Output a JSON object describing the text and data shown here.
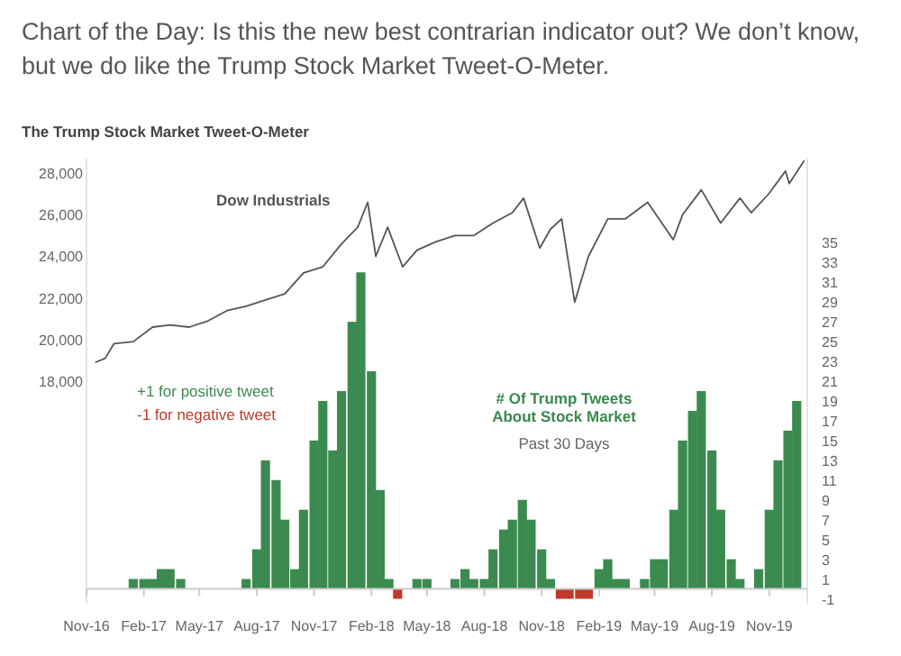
{
  "chart_data": {
    "type": "line",
    "title": "The Trump Stock Market Tweet-O-Meter",
    "subtitle": "Chart of the Day: Is this the new best contrarian indicator out?  We don’t know, but we do like the Trump Stock Market Tweet-O-Meter.",
    "xlim": [
      "2016-11-01",
      "2020-01-01"
    ],
    "xticks": [
      {
        "value": "2016-11-01",
        "label": "Nov-16"
      },
      {
        "value": "2017-02-01",
        "label": "Feb-17"
      },
      {
        "value": "2017-05-01",
        "label": "May-17"
      },
      {
        "value": "2017-08-01",
        "label": "Aug-17"
      },
      {
        "value": "2017-11-01",
        "label": "Nov-17"
      },
      {
        "value": "2018-02-01",
        "label": "Feb-18"
      },
      {
        "value": "2018-05-01",
        "label": "May-18"
      },
      {
        "value": "2018-08-01",
        "label": "Aug-18"
      },
      {
        "value": "2018-11-01",
        "label": "Nov-18"
      },
      {
        "value": "2019-02-01",
        "label": "Feb-19"
      },
      {
        "value": "2019-05-01",
        "label": "May-19"
      },
      {
        "value": "2019-08-01",
        "label": "Aug-19"
      },
      {
        "value": "2019-11-01",
        "label": "Nov-19"
      }
    ],
    "ylim": [
      7300,
      28700
    ],
    "yticks": [
      {
        "value": 18000,
        "label": "18,000"
      },
      {
        "value": 20000,
        "label": "20,000"
      },
      {
        "value": 22000,
        "label": "22,000"
      },
      {
        "value": 24000,
        "label": "24,000"
      },
      {
        "value": 26000,
        "label": "26,000"
      },
      {
        "value": 28000,
        "label": "28,000"
      }
    ],
    "y2lim": [
      -1.5,
      43.5
    ],
    "y2ticks": [
      -1,
      1,
      3,
      5,
      7,
      9,
      11,
      13,
      15,
      17,
      19,
      21,
      23,
      25,
      27,
      29,
      31,
      33,
      35
    ],
    "annotations": [
      "+1 for positive tweet",
      "-1 for negative tweet",
      "Past 30 Days"
    ],
    "series": [
      {
        "name": "Dow Industrials",
        "color": "#555555",
        "x": [
          "2016-11-15",
          "2016-12-01",
          "2016-12-15",
          "2017-01-15",
          "2017-02-15",
          "2017-03-15",
          "2017-04-15",
          "2017-05-15",
          "2017-06-15",
          "2017-07-15",
          "2017-08-15",
          "2017-09-15",
          "2017-10-15",
          "2017-11-15",
          "2017-12-15",
          "2018-01-10",
          "2018-01-26",
          "2018-02-08",
          "2018-02-27",
          "2018-03-23",
          "2018-04-15",
          "2018-05-15",
          "2018-06-15",
          "2018-07-15",
          "2018-08-15",
          "2018-09-15",
          "2018-10-03",
          "2018-10-29",
          "2018-11-15",
          "2018-12-03",
          "2018-12-24",
          "2019-01-15",
          "2019-02-15",
          "2019-03-15",
          "2019-04-20",
          "2019-05-31",
          "2019-06-15",
          "2019-07-15",
          "2019-08-15",
          "2019-09-15",
          "2019-10-03",
          "2019-10-31",
          "2019-11-27",
          "2019-12-03",
          "2019-12-27"
        ],
        "values": [
          18900,
          19100,
          19800,
          19900,
          20600,
          20700,
          20600,
          20900,
          21400,
          21600,
          21900,
          22200,
          23200,
          23500,
          24600,
          25400,
          26600,
          24000,
          25400,
          23500,
          24300,
          24700,
          25000,
          25000,
          25600,
          26100,
          26800,
          24400,
          25300,
          25800,
          21800,
          24000,
          25800,
          25800,
          26600,
          24800,
          26000,
          27200,
          25600,
          26800,
          26100,
          27000,
          28100,
          27500,
          28600
        ]
      },
      {
        "name": "# Of Trump Tweets About Stock Market",
        "type": "bar",
        "axis": "y2",
        "color": "#3b8a4f",
        "x": [
          "2017-01-15",
          "2017-02-01",
          "2017-02-15",
          "2017-03-01",
          "2017-03-15",
          "2017-04-01",
          "2017-07-15",
          "2017-08-01",
          "2017-08-15",
          "2017-09-01",
          "2017-09-15",
          "2017-10-01",
          "2017-10-15",
          "2017-11-01",
          "2017-11-15",
          "2017-12-01",
          "2017-12-15",
          "2018-01-01",
          "2018-01-15",
          "2018-02-01",
          "2018-02-15",
          "2018-03-01",
          "2018-03-15",
          "2018-04-15",
          "2018-05-01",
          "2018-06-15",
          "2018-07-01",
          "2018-07-15",
          "2018-08-01",
          "2018-08-15",
          "2018-09-01",
          "2018-09-15",
          "2018-10-01",
          "2018-10-15",
          "2018-11-01",
          "2018-11-15",
          "2018-12-01",
          "2018-12-15",
          "2019-01-01",
          "2019-01-15",
          "2019-02-01",
          "2019-02-15",
          "2019-03-01",
          "2019-03-15",
          "2019-04-15",
          "2019-05-01",
          "2019-05-15",
          "2019-06-01",
          "2019-06-15",
          "2019-07-01",
          "2019-07-15",
          "2019-08-01",
          "2019-08-15",
          "2019-09-01",
          "2019-09-15",
          "2019-10-15",
          "2019-11-01",
          "2019-11-15",
          "2019-12-01",
          "2019-12-15"
        ],
        "values": [
          1,
          1,
          1,
          2,
          2,
          1,
          1,
          4,
          13,
          11,
          7,
          2,
          8,
          15,
          19,
          14,
          20,
          27,
          32,
          22,
          10,
          1,
          -1,
          1,
          1,
          1,
          2,
          1,
          1,
          4,
          6,
          7,
          9,
          7,
          4,
          1,
          -1,
          -1,
          -1,
          -1,
          2,
          3,
          1,
          1,
          1,
          3,
          3,
          8,
          15,
          18,
          20,
          14,
          8,
          3,
          1,
          2,
          8,
          13,
          16,
          19
        ],
        "colors": [
          "#3b8a4f",
          "#3b8a4f",
          "#3b8a4f",
          "#3b8a4f",
          "#3b8a4f",
          "#3b8a4f",
          "#3b8a4f",
          "#3b8a4f",
          "#3b8a4f",
          "#3b8a4f",
          "#3b8a4f",
          "#3b8a4f",
          "#3b8a4f",
          "#3b8a4f",
          "#3b8a4f",
          "#3b8a4f",
          "#3b8a4f",
          "#3b8a4f",
          "#3b8a4f",
          "#3b8a4f",
          "#3b8a4f",
          "#3b8a4f",
          "#c0392b",
          "#3b8a4f",
          "#3b8a4f",
          "#3b8a4f",
          "#3b8a4f",
          "#3b8a4f",
          "#3b8a4f",
          "#3b8a4f",
          "#3b8a4f",
          "#3b8a4f",
          "#3b8a4f",
          "#3b8a4f",
          "#3b8a4f",
          "#3b8a4f",
          "#c0392b",
          "#c0392b",
          "#c0392b",
          "#c0392b",
          "#3b8a4f",
          "#3b8a4f",
          "#3b8a4f",
          "#3b8a4f",
          "#3b8a4f",
          "#3b8a4f",
          "#3b8a4f",
          "#3b8a4f",
          "#3b8a4f",
          "#3b8a4f",
          "#3b8a4f",
          "#3b8a4f",
          "#3b8a4f",
          "#3b8a4f",
          "#3b8a4f",
          "#3b8a4f",
          "#3b8a4f",
          "#3b8a4f",
          "#3b8a4f",
          "#3b8a4f"
        ]
      }
    ]
  }
}
